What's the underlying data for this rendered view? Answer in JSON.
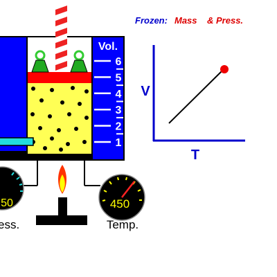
{
  "title": {
    "prefix": "Frozen:",
    "first": "Mass",
    "second": "& Press."
  },
  "cylinder": {
    "scale_title": "Vol.",
    "scale_labels": [
      "6",
      "5",
      "4",
      "3",
      "2",
      "1"
    ]
  },
  "gauges": {
    "pressure": {
      "reading": "50",
      "label": "ess."
    },
    "temperature": {
      "reading": "450",
      "label": "Temp."
    }
  },
  "graph": {
    "y_label": "V",
    "x_label": "T"
  }
}
